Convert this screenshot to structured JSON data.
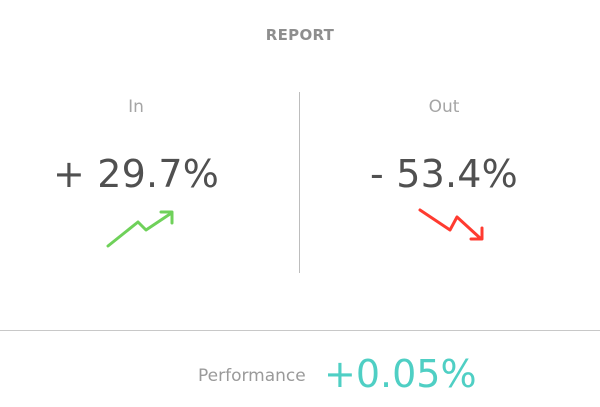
{
  "report": {
    "title": "REPORT"
  },
  "in": {
    "label": "In",
    "value": "+ 29.7%",
    "trend_icon": "trend-up-arrow-icon",
    "color": "#6fd15a"
  },
  "out": {
    "label": "Out",
    "value": "- 53.4%",
    "trend_icon": "trend-down-arrow-icon",
    "color": "#ff3b30"
  },
  "performance": {
    "label": "Performance",
    "value": "+0.05%",
    "color": "#4fcfc4"
  }
}
